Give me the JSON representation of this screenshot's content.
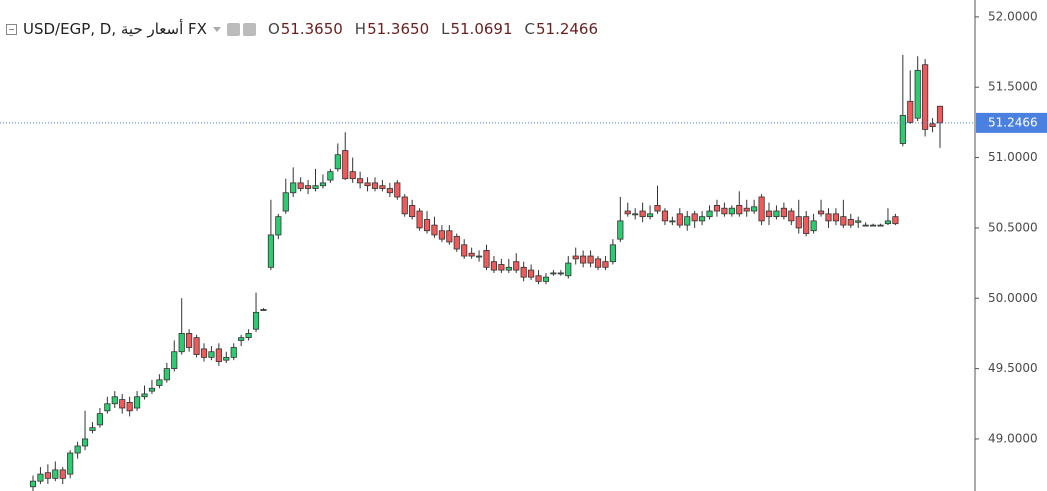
{
  "chart_data": {
    "type": "candlestick",
    "title": "USD/EGP, D, أسعار حية FX",
    "header": [
      {
        "name": "O",
        "value": "51.3650"
      },
      {
        "name": "H",
        "value": "51.3650"
      },
      {
        "name": "L",
        "value": "51.0691"
      },
      {
        "name": "C",
        "value": "51.2466"
      }
    ],
    "up_color": "#2ecc71",
    "down_color": "#ef5a5a",
    "ylim": [
      48.63,
      52.12
    ],
    "yticks": [
      {
        "value": 49,
        "label": "49.0000"
      },
      {
        "value": 49.5,
        "label": "49.5000"
      },
      {
        "value": 50,
        "label": "50.0000"
      },
      {
        "value": 50.5,
        "label": "50.5000"
      },
      {
        "value": 51,
        "label": "51.0000"
      },
      {
        "value": 51.5,
        "label": "51.5000"
      },
      {
        "value": 52,
        "label": "52.0000"
      }
    ],
    "last_price": {
      "value": 51.2466,
      "label": "51.2466",
      "color": "#4a80e0"
    },
    "ohlc": [
      [
        48.66,
        48.74,
        48.63,
        48.7
      ],
      [
        48.7,
        48.8,
        48.68,
        48.75
      ],
      [
        48.76,
        48.82,
        48.68,
        48.72
      ],
      [
        48.72,
        48.84,
        48.7,
        48.78
      ],
      [
        48.78,
        48.8,
        48.68,
        48.72
      ],
      [
        48.75,
        48.92,
        48.72,
        48.9
      ],
      [
        48.9,
        48.98,
        48.86,
        48.95
      ],
      [
        48.95,
        49.2,
        48.92,
        49.0
      ],
      [
        49.06,
        49.12,
        49.04,
        49.08
      ],
      [
        49.1,
        49.22,
        49.08,
        49.18
      ],
      [
        49.2,
        49.3,
        49.18,
        49.25
      ],
      [
        49.25,
        49.34,
        49.22,
        49.3
      ],
      [
        49.28,
        49.32,
        49.18,
        49.22
      ],
      [
        49.26,
        49.3,
        49.16,
        49.2
      ],
      [
        49.22,
        49.34,
        49.2,
        49.3
      ],
      [
        49.3,
        49.38,
        49.28,
        49.32
      ],
      [
        49.34,
        49.42,
        49.32,
        49.36
      ],
      [
        49.38,
        49.46,
        49.36,
        49.42
      ],
      [
        49.42,
        49.54,
        49.4,
        49.5
      ],
      [
        49.5,
        49.7,
        49.48,
        49.62
      ],
      [
        49.62,
        50.0,
        49.6,
        49.75
      ],
      [
        49.75,
        49.78,
        49.62,
        49.65
      ],
      [
        49.72,
        49.74,
        49.58,
        49.6
      ],
      [
        49.64,
        49.68,
        49.55,
        49.58
      ],
      [
        49.58,
        49.66,
        49.56,
        49.62
      ],
      [
        49.64,
        49.68,
        49.52,
        49.55
      ],
      [
        49.56,
        49.62,
        49.54,
        49.58
      ],
      [
        49.58,
        49.68,
        49.56,
        49.65
      ],
      [
        49.7,
        49.74,
        49.66,
        49.72
      ],
      [
        49.72,
        49.78,
        49.7,
        49.75
      ],
      [
        49.78,
        50.04,
        49.76,
        49.9
      ],
      [
        49.92,
        49.93,
        49.91,
        49.92
      ],
      [
        50.22,
        50.7,
        50.2,
        50.45
      ],
      [
        50.45,
        50.6,
        50.42,
        50.58
      ],
      [
        50.62,
        50.85,
        50.6,
        50.75
      ],
      [
        50.75,
        50.93,
        50.72,
        50.82
      ],
      [
        50.82,
        50.86,
        50.76,
        50.78
      ],
      [
        50.8,
        50.84,
        50.74,
        50.78
      ],
      [
        50.78,
        50.92,
        50.76,
        50.8
      ],
      [
        50.8,
        50.88,
        50.78,
        50.82
      ],
      [
        50.84,
        50.92,
        50.82,
        50.9
      ],
      [
        50.92,
        51.1,
        50.9,
        51.02
      ],
      [
        51.05,
        51.18,
        50.84,
        50.85
      ],
      [
        50.9,
        51.0,
        50.82,
        50.85
      ],
      [
        50.85,
        50.9,
        50.78,
        50.82
      ],
      [
        50.82,
        50.86,
        50.76,
        50.8
      ],
      [
        50.82,
        50.86,
        50.76,
        50.78
      ],
      [
        50.8,
        50.84,
        50.76,
        50.78
      ],
      [
        50.78,
        50.82,
        50.72,
        50.75
      ],
      [
        50.82,
        50.84,
        50.7,
        50.72
      ],
      [
        50.72,
        50.74,
        50.58,
        50.6
      ],
      [
        50.66,
        50.7,
        50.56,
        50.58
      ],
      [
        50.62,
        50.64,
        50.48,
        50.5
      ],
      [
        50.56,
        50.62,
        50.46,
        50.48
      ],
      [
        50.52,
        50.58,
        50.43,
        50.45
      ],
      [
        50.48,
        50.52,
        50.4,
        50.42
      ],
      [
        50.48,
        50.52,
        50.38,
        50.4
      ],
      [
        50.44,
        50.46,
        50.33,
        50.35
      ],
      [
        50.38,
        50.42,
        50.28,
        50.3
      ],
      [
        50.32,
        50.36,
        50.28,
        50.3
      ],
      [
        50.3,
        50.34,
        50.26,
        50.3
      ],
      [
        50.34,
        50.38,
        50.2,
        50.22
      ],
      [
        50.26,
        50.3,
        50.18,
        50.2
      ],
      [
        50.24,
        50.28,
        50.18,
        50.2
      ],
      [
        50.2,
        50.28,
        50.18,
        50.22
      ],
      [
        50.26,
        50.32,
        50.18,
        50.2
      ],
      [
        50.22,
        50.26,
        50.12,
        50.15
      ],
      [
        50.2,
        50.24,
        50.13,
        50.15
      ],
      [
        50.16,
        50.2,
        50.1,
        50.12
      ],
      [
        50.12,
        50.18,
        50.1,
        50.15
      ],
      [
        50.18,
        50.2,
        50.16,
        50.18
      ],
      [
        50.18,
        50.2,
        50.16,
        50.18
      ],
      [
        50.16,
        50.3,
        50.14,
        50.25
      ],
      [
        50.3,
        50.36,
        50.24,
        50.28
      ],
      [
        50.3,
        50.34,
        50.22,
        50.25
      ],
      [
        50.3,
        50.34,
        50.22,
        50.25
      ],
      [
        50.28,
        50.3,
        50.2,
        50.22
      ],
      [
        50.26,
        50.3,
        50.2,
        50.22
      ],
      [
        50.26,
        50.42,
        50.24,
        50.38
      ],
      [
        50.42,
        50.72,
        50.4,
        50.55
      ],
      [
        50.62,
        50.68,
        50.58,
        50.6
      ],
      [
        50.6,
        50.64,
        50.56,
        50.6
      ],
      [
        50.62,
        50.68,
        50.54,
        50.58
      ],
      [
        50.58,
        50.66,
        50.56,
        50.6
      ],
      [
        50.66,
        50.8,
        50.6,
        50.62
      ],
      [
        50.62,
        50.64,
        50.52,
        50.55
      ],
      [
        50.55,
        50.58,
        50.52,
        50.55
      ],
      [
        50.6,
        50.64,
        50.5,
        50.52
      ],
      [
        50.52,
        50.62,
        50.48,
        50.58
      ],
      [
        50.6,
        50.62,
        50.5,
        50.55
      ],
      [
        50.55,
        50.62,
        50.52,
        50.58
      ],
      [
        50.58,
        50.66,
        50.56,
        50.62
      ],
      [
        50.66,
        50.7,
        50.58,
        50.62
      ],
      [
        50.64,
        50.68,
        50.58,
        50.6
      ],
      [
        50.6,
        50.66,
        50.58,
        50.64
      ],
      [
        50.66,
        50.76,
        50.58,
        50.6
      ],
      [
        50.64,
        50.7,
        50.58,
        50.62
      ],
      [
        50.62,
        50.7,
        50.6,
        50.65
      ],
      [
        50.72,
        50.74,
        50.52,
        50.55
      ],
      [
        50.62,
        50.68,
        50.52,
        50.58
      ],
      [
        50.58,
        50.66,
        50.56,
        50.62
      ],
      [
        50.64,
        50.68,
        50.56,
        50.58
      ],
      [
        50.62,
        50.64,
        50.52,
        50.55
      ],
      [
        50.58,
        50.7,
        50.46,
        50.5
      ],
      [
        50.58,
        50.62,
        50.44,
        50.46
      ],
      [
        50.48,
        50.6,
        50.46,
        50.55
      ],
      [
        50.62,
        50.7,
        50.58,
        50.6
      ],
      [
        50.6,
        50.64,
        50.5,
        50.55
      ],
      [
        50.6,
        50.64,
        50.52,
        50.55
      ],
      [
        50.58,
        50.7,
        50.5,
        50.52
      ],
      [
        50.56,
        50.6,
        50.5,
        50.52
      ],
      [
        50.54,
        50.58,
        50.5,
        50.55
      ],
      [
        50.52,
        50.54,
        50.51,
        50.52
      ],
      [
        50.52,
        50.53,
        50.51,
        50.52
      ],
      [
        50.52,
        50.53,
        50.51,
        50.52
      ],
      [
        50.53,
        50.64,
        50.52,
        50.55
      ],
      [
        50.58,
        50.6,
        50.52,
        50.53
      ],
      [
        51.1,
        51.73,
        51.08,
        51.3
      ],
      [
        51.4,
        51.62,
        51.24,
        51.25
      ],
      [
        51.28,
        51.72,
        51.26,
        51.62
      ],
      [
        51.66,
        51.7,
        51.15,
        51.2
      ],
      [
        51.24,
        51.28,
        51.18,
        51.22
      ],
      [
        51.365,
        51.365,
        51.0691,
        51.2466
      ]
    ]
  }
}
